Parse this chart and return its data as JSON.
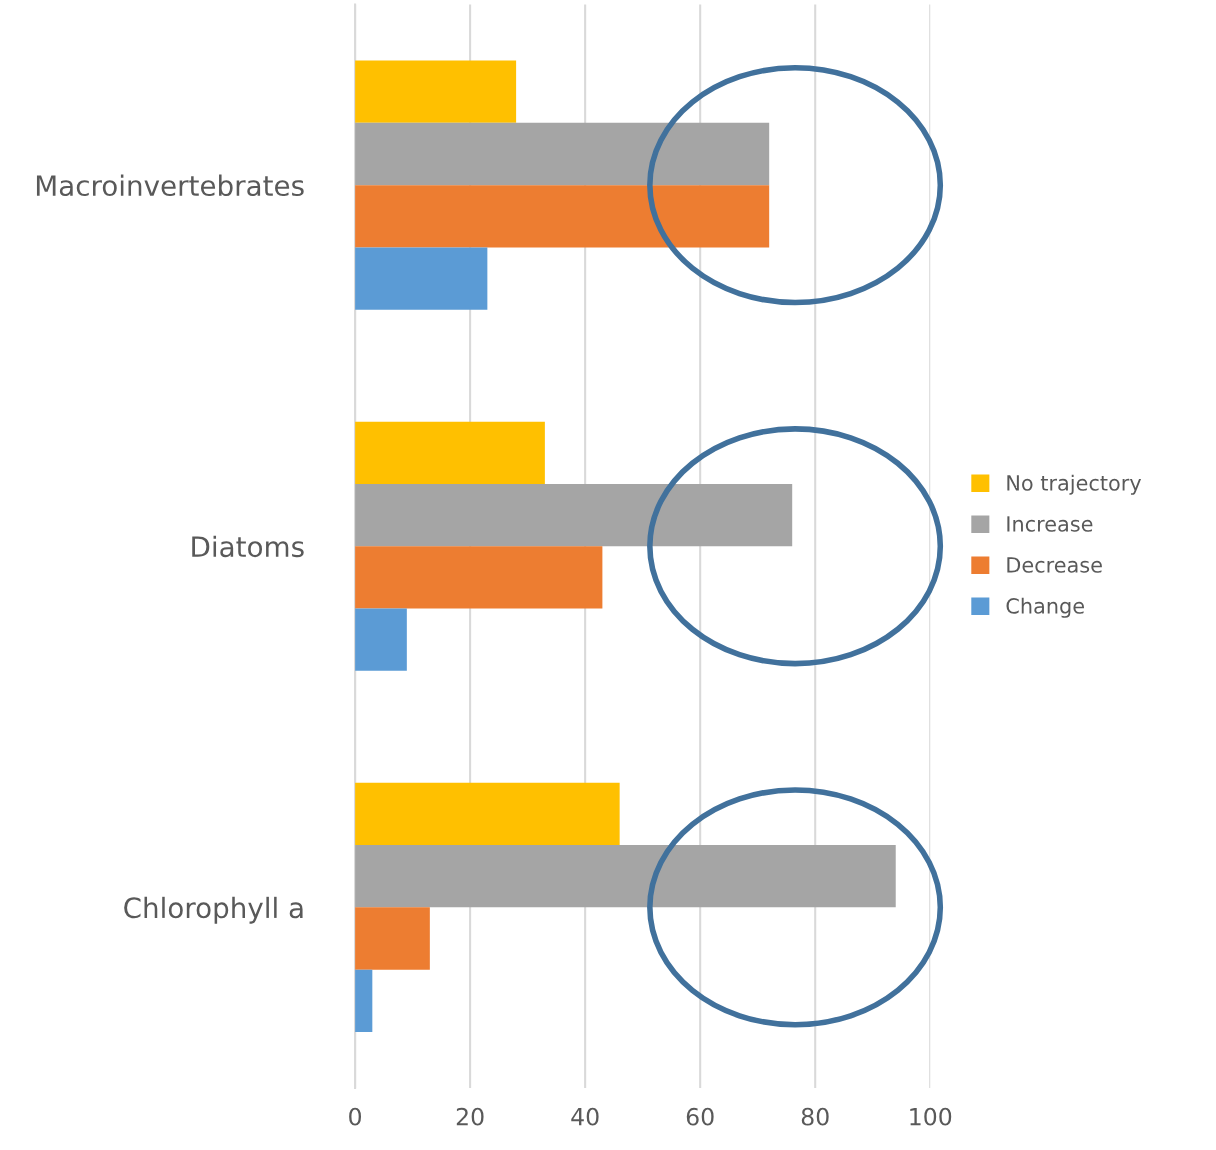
{
  "chart_data": {
    "type": "bar",
    "orientation": "horizontal",
    "categories": [
      "Macroinvertebrates",
      "Diatoms",
      "Chlorophyll a"
    ],
    "series": [
      {
        "name": "No trajectory",
        "color": "#ffc000",
        "values": [
          28,
          33,
          46
        ]
      },
      {
        "name": "Increase",
        "color": "#a5a5a5",
        "values": [
          72,
          76,
          94
        ]
      },
      {
        "name": "Decrease",
        "color": "#ed7d31",
        "values": [
          72,
          43,
          13
        ]
      },
      {
        "name": "Change",
        "color": "#5b9bd5",
        "values": [
          23,
          9,
          3
        ]
      }
    ],
    "xlim": [
      0,
      100
    ],
    "xticks": [
      0,
      20,
      40,
      60,
      80,
      100
    ],
    "grid": "x",
    "legend": "right"
  }
}
